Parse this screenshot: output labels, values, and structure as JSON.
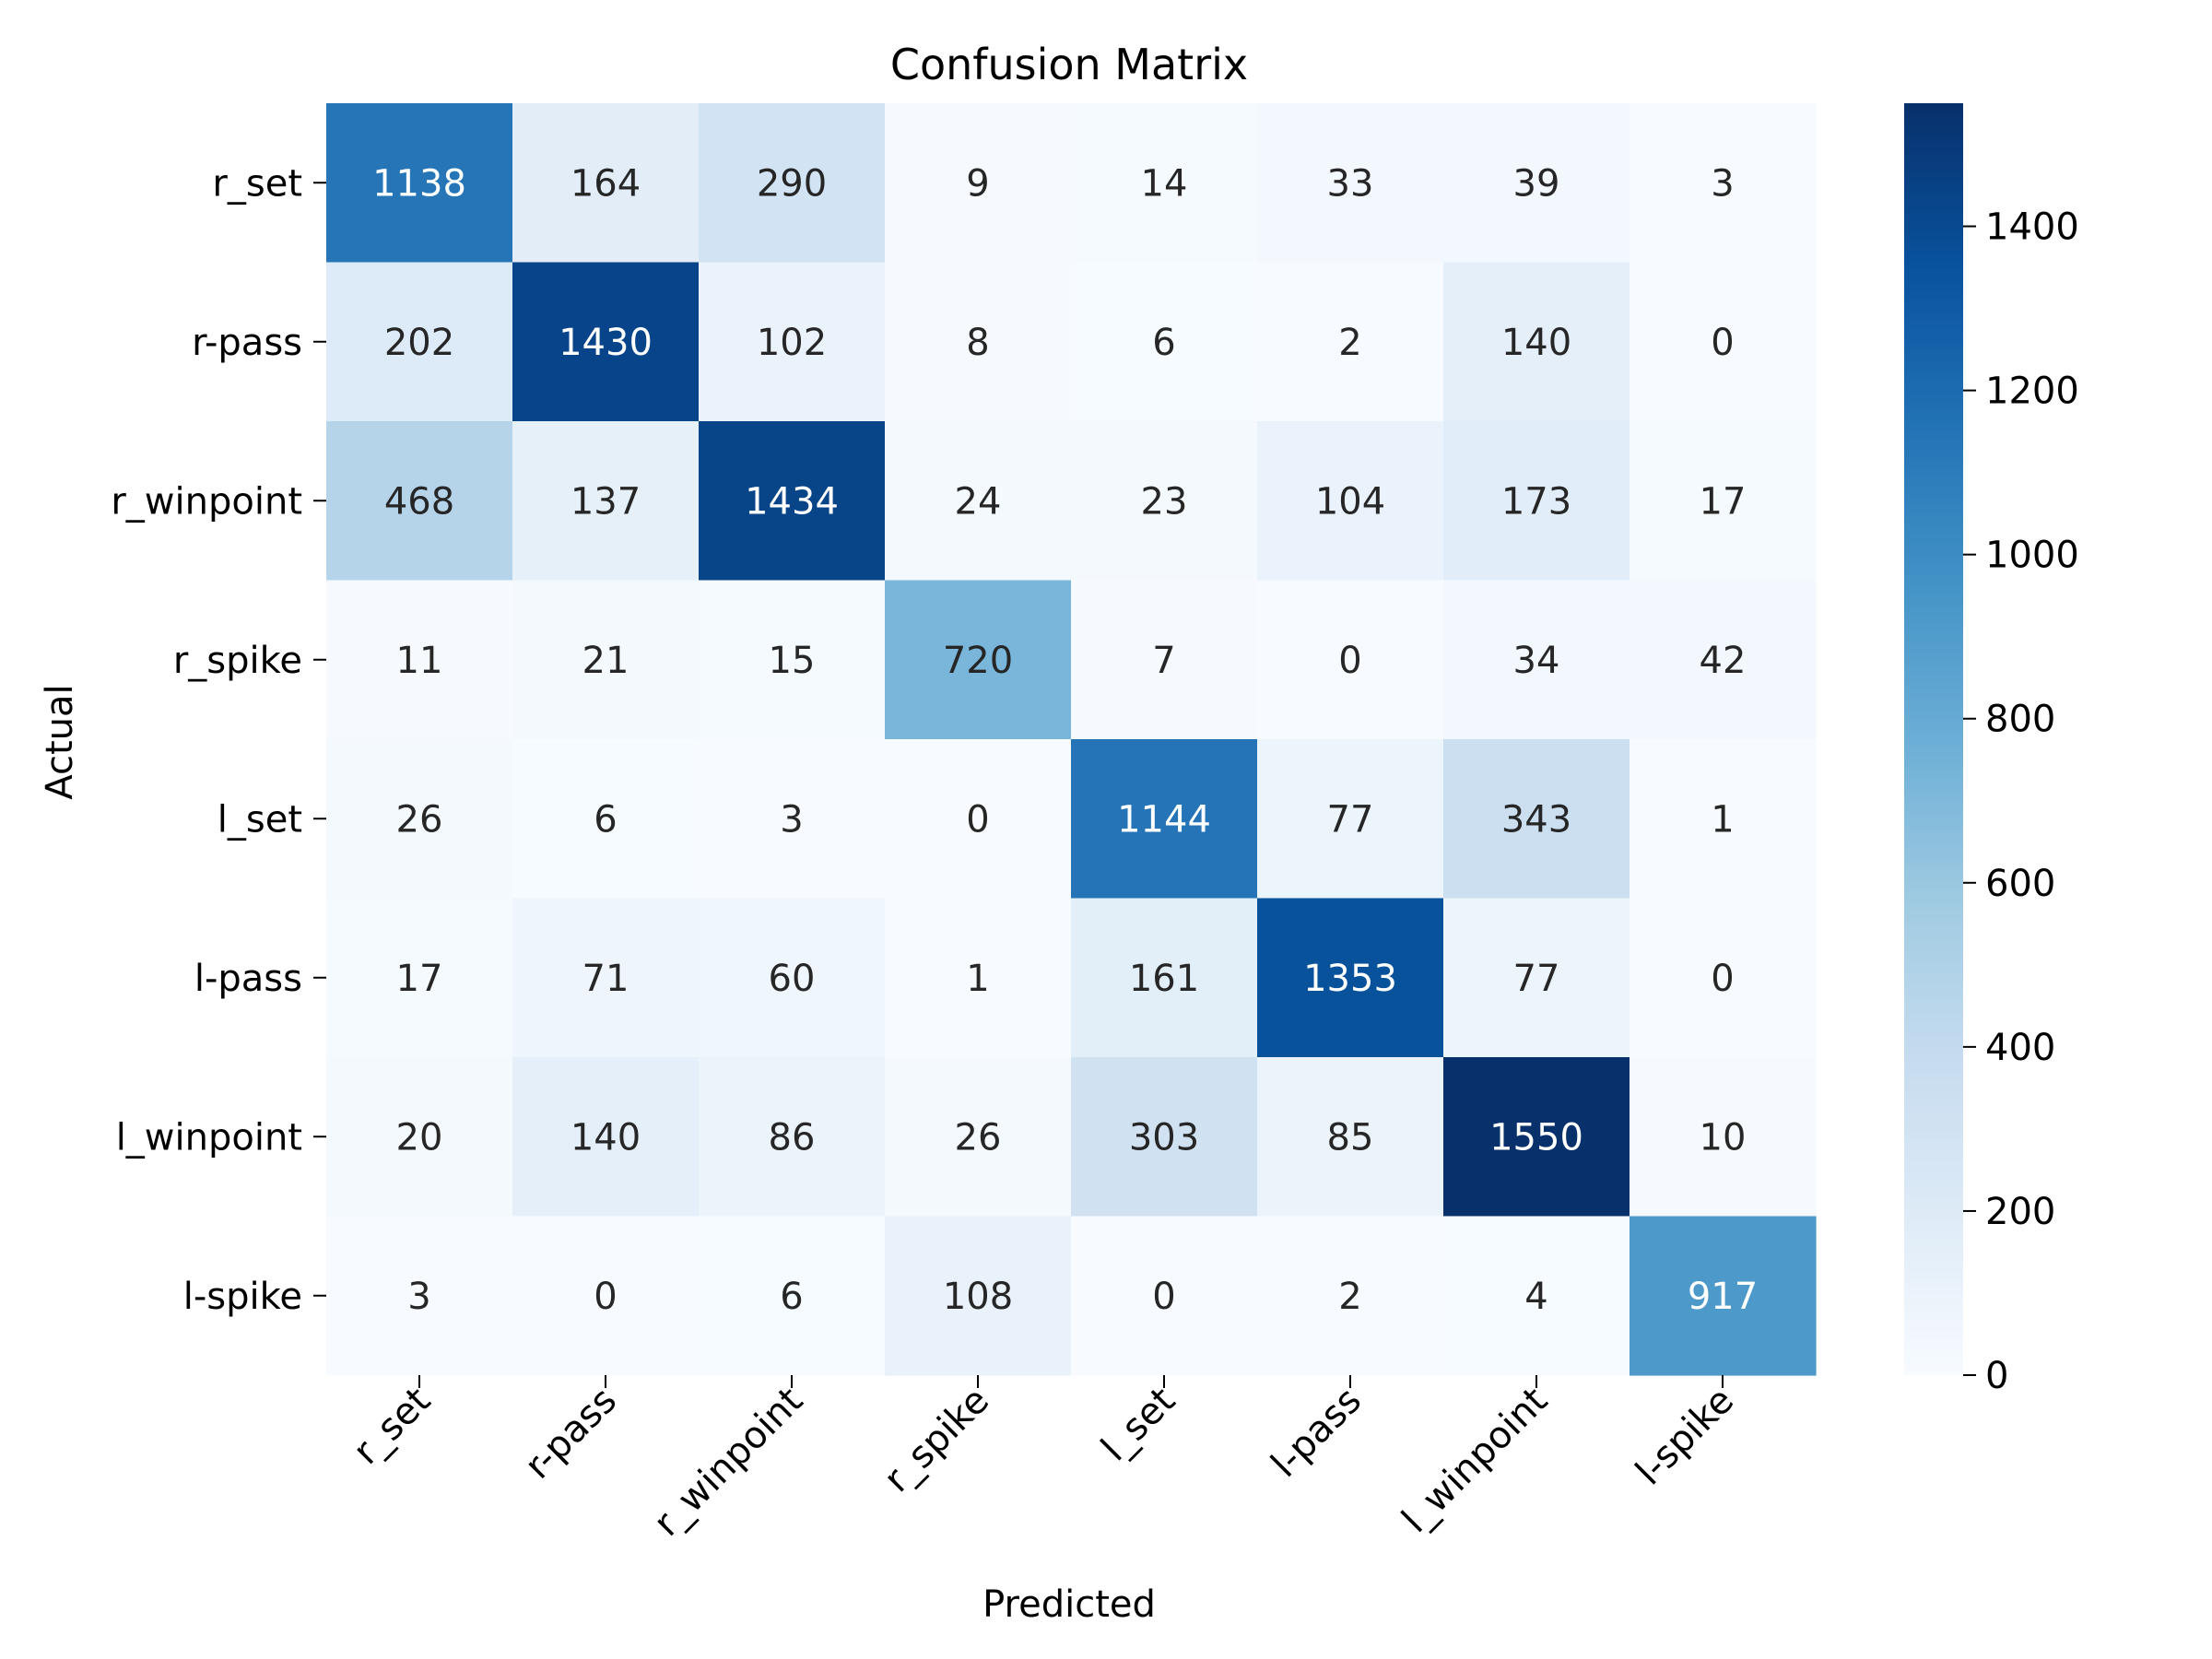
{
  "chart_data": {
    "type": "heatmap",
    "title": "Confusion Matrix",
    "xlabel": "Predicted",
    "ylabel": "Actual",
    "x_categories": [
      "r_set",
      "r-pass",
      "r_winpoint",
      "r_spike",
      "l_set",
      "l-pass",
      "l_winpoint",
      "l-spike"
    ],
    "y_categories": [
      "r_set",
      "r-pass",
      "r_winpoint",
      "r_spike",
      "l_set",
      "l-pass",
      "l_winpoint",
      "l-spike"
    ],
    "values": [
      [
        1138,
        164,
        290,
        9,
        14,
        33,
        39,
        3
      ],
      [
        202,
        1430,
        102,
        8,
        6,
        2,
        140,
        0
      ],
      [
        468,
        137,
        1434,
        24,
        23,
        104,
        173,
        17
      ],
      [
        11,
        21,
        15,
        720,
        7,
        0,
        34,
        42
      ],
      [
        26,
        6,
        3,
        0,
        1144,
        77,
        343,
        1
      ],
      [
        17,
        71,
        60,
        1,
        161,
        1353,
        77,
        0
      ],
      [
        20,
        140,
        86,
        26,
        303,
        85,
        1550,
        10
      ],
      [
        3,
        0,
        6,
        108,
        0,
        2,
        4,
        917
      ]
    ],
    "colormap": "Blues",
    "vmin": 0,
    "vmax": 1550,
    "colorbar_ticks": [
      0,
      200,
      400,
      600,
      800,
      1000,
      1200,
      1400
    ],
    "legend_placement": "right colorbar",
    "grid": false
  }
}
